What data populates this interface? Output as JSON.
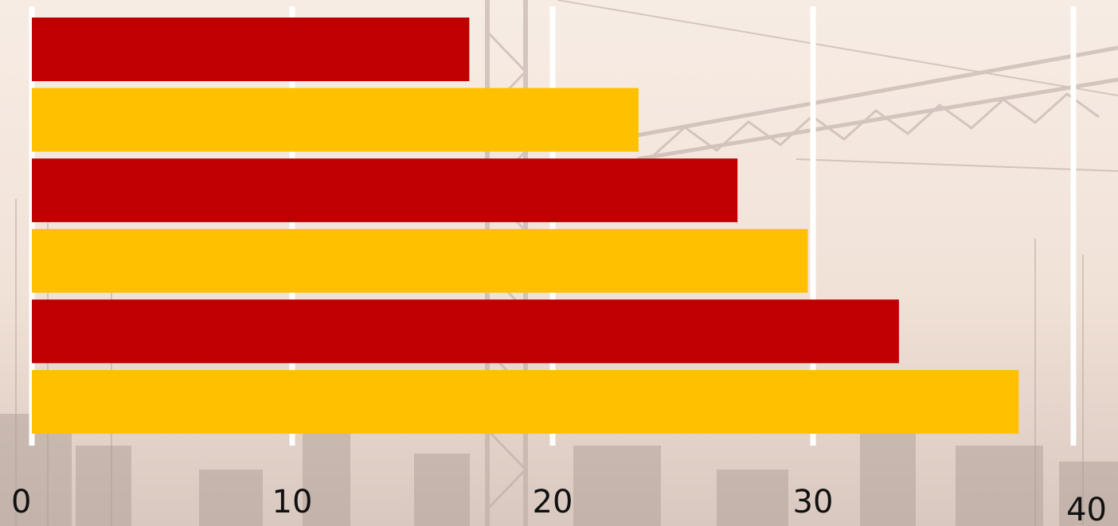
{
  "chart_data": {
    "type": "bar",
    "orientation": "horizontal",
    "categories": [
      "",
      "",
      "",
      "",
      "",
      ""
    ],
    "values": [
      16.8,
      23.3,
      27.1,
      29.8,
      33.3,
      37.9
    ],
    "bar_colors": [
      "#C00000",
      "#FFC000",
      "#C00000",
      "#FFC000",
      "#C00000",
      "#FFC000"
    ],
    "xlim": [
      0,
      40
    ],
    "x_ticks": [
      "0",
      "10",
      "20",
      "30",
      "40"
    ],
    "grid": "vertical",
    "gridline_color": "#FFFFFF",
    "title": "",
    "xlabel": "",
    "ylabel": "",
    "legend": "none"
  }
}
